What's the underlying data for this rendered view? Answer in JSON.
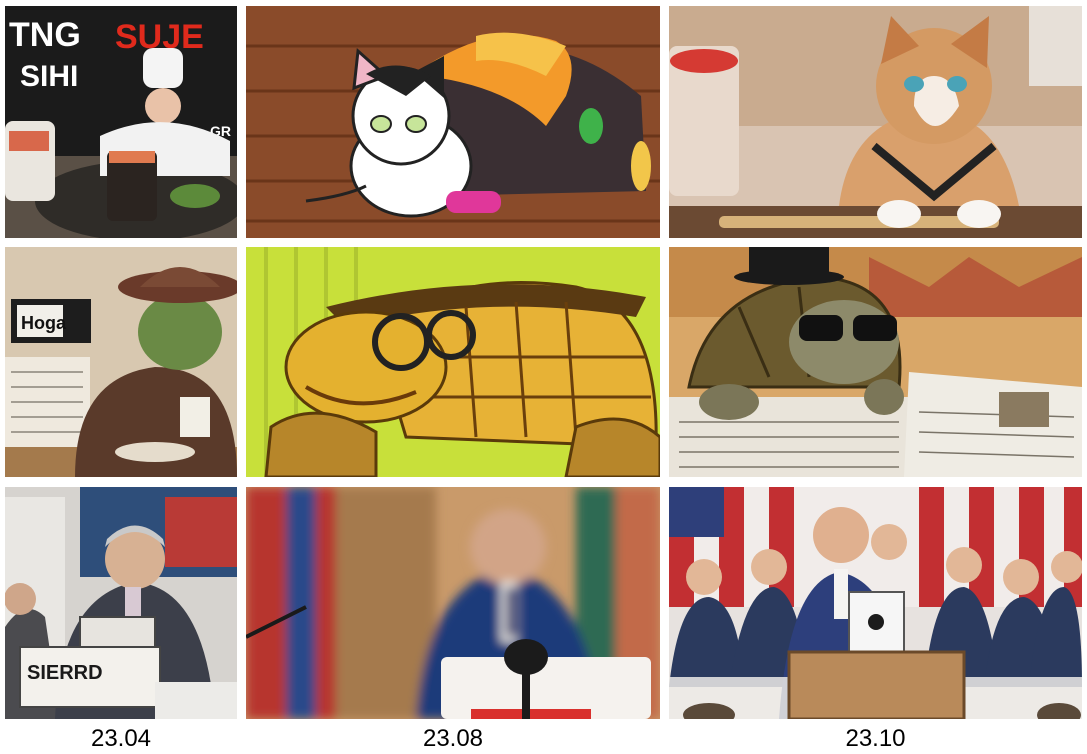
{
  "grid": {
    "columns": [
      {
        "caption": "23.04"
      },
      {
        "caption": "23.08"
      },
      {
        "caption": "23.10"
      }
    ],
    "rows": [
      {
        "cells": [
          {
            "subject": "sushi-chef-photo",
            "text_lines": [
              "TNG",
              "SUJE",
              "SIHI",
              "GR"
            ]
          },
          {
            "subject": "cartoon-cat-with-sushi"
          },
          {
            "subject": "cat-at-sushi-bar-photo"
          }
        ]
      },
      {
        "cells": [
          {
            "subject": "turtle-in-suit-with-hat",
            "sign_text": "Hoga"
          },
          {
            "subject": "cartoon-turtle-with-glasses"
          },
          {
            "subject": "tortoise-with-sunglasses-and-newspaper"
          }
        ]
      },
      {
        "cells": [
          {
            "subject": "politician-at-podium-photo",
            "sign_text": "SIERRD"
          },
          {
            "subject": "blurry-politician-at-podium"
          },
          {
            "subject": "politician-at-podium-with-crowd"
          }
        ]
      }
    ]
  },
  "colors": {
    "wood": "#8a4b2a",
    "lime": "#c8e03a",
    "navy_suit": "#26336b"
  }
}
